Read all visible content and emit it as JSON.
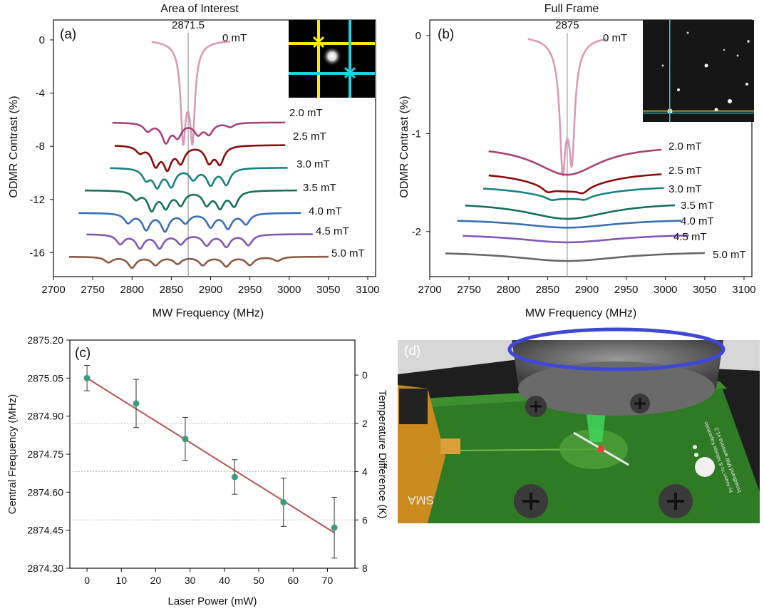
{
  "chart_data": [
    {
      "id": "a",
      "type": "line",
      "panel_label": "(a)",
      "title": "Area of Interest",
      "xlabel": "MW Frequency (MHz)",
      "ylabel": "ODMR Contrast (%)",
      "xlim": [
        2700,
        3110
      ],
      "ylim": [
        -17.8,
        1.5
      ],
      "xticks": [
        2700,
        2750,
        2800,
        2850,
        2900,
        2950,
        3000,
        3050,
        3100
      ],
      "yticks": [
        0,
        -4,
        -8,
        -12,
        -16
      ],
      "center_line": {
        "x": 2871.5,
        "label": "2871.5"
      },
      "inset": "camera-region-of-interest",
      "series": [
        {
          "name": "0 mT",
          "color": "#d89ab8",
          "baseline": 0,
          "xmin": 2825,
          "xmax": 2925,
          "lines": [
            {
              "c": 2865,
              "d": 5.7,
              "w": 3.5
            },
            {
              "c": 2877,
              "d": 5.7,
              "w": 3.5
            },
            {
              "c": 2871,
              "d": 2.5,
              "w": 9
            }
          ]
        },
        {
          "name": "2.0 mT",
          "color": "#a64377",
          "baseline": -6.2,
          "xmin": 2775,
          "xmax": 2995,
          "lines": [
            {
              "c": 2843,
              "d": 1.4,
              "w": 6
            },
            {
              "c": 2858,
              "d": 1.0,
              "w": 6
            },
            {
              "c": 2884,
              "d": 0.8,
              "w": 6
            },
            {
              "c": 2898,
              "d": 0.8,
              "w": 6
            },
            {
              "c": 2820,
              "d": 0.6,
              "w": 6
            },
            {
              "c": 2925,
              "d": 0.3,
              "w": 6
            }
          ]
        },
        {
          "name": "2.5 mT",
          "color": "#8b0b0b",
          "baseline": -7.9,
          "xmin": 2778,
          "xmax": 2995,
          "lines": [
            {
              "c": 2830,
              "d": 1.4,
              "w": 6
            },
            {
              "c": 2845,
              "d": 1.6,
              "w": 6
            },
            {
              "c": 2862,
              "d": 1.2,
              "w": 6
            },
            {
              "c": 2898,
              "d": 1.2,
              "w": 6
            },
            {
              "c": 2912,
              "d": 1.3,
              "w": 6
            },
            {
              "c": 2810,
              "d": 0.5,
              "w": 6
            }
          ]
        },
        {
          "name": "3.0 mT",
          "color": "#1a8080",
          "baseline": -9.6,
          "xmin": 2772,
          "xmax": 2998,
          "lines": [
            {
              "c": 2818,
              "d": 0.8,
              "w": 6
            },
            {
              "c": 2832,
              "d": 1.3,
              "w": 6
            },
            {
              "c": 2850,
              "d": 1.3,
              "w": 6
            },
            {
              "c": 2878,
              "d": 0.8,
              "w": 6
            },
            {
              "c": 2900,
              "d": 1.2,
              "w": 6
            },
            {
              "c": 2920,
              "d": 1.2,
              "w": 6
            }
          ]
        },
        {
          "name": "3.5 mT",
          "color": "#16705a",
          "baseline": -11.3,
          "xmin": 2740,
          "xmax": 3010,
          "lines": [
            {
              "c": 2805,
              "d": 0.6,
              "w": 6
            },
            {
              "c": 2825,
              "d": 1.4,
              "w": 6
            },
            {
              "c": 2843,
              "d": 1.2,
              "w": 6
            },
            {
              "c": 2862,
              "d": 1.0,
              "w": 6
            },
            {
              "c": 2895,
              "d": 1.0,
              "w": 6
            },
            {
              "c": 2912,
              "d": 1.2,
              "w": 6
            },
            {
              "c": 2930,
              "d": 1.1,
              "w": 6
            }
          ]
        },
        {
          "name": "4.0 mT",
          "color": "#3a6fb8",
          "baseline": -13.0,
          "xmin": 2732,
          "xmax": 3015,
          "lines": [
            {
              "c": 2795,
              "d": 0.7,
              "w": 6
            },
            {
              "c": 2818,
              "d": 1.2,
              "w": 6
            },
            {
              "c": 2842,
              "d": 1.3,
              "w": 6
            },
            {
              "c": 2868,
              "d": 0.7,
              "w": 6
            },
            {
              "c": 2900,
              "d": 1.0,
              "w": 6
            },
            {
              "c": 2922,
              "d": 1.1,
              "w": 6
            },
            {
              "c": 2945,
              "d": 0.8,
              "w": 6
            }
          ]
        },
        {
          "name": "4.5 mT",
          "color": "#8058b8",
          "baseline": -14.6,
          "xmin": 2742,
          "xmax": 3030,
          "lines": [
            {
              "c": 2785,
              "d": 0.7,
              "w": 6
            },
            {
              "c": 2810,
              "d": 1.0,
              "w": 6
            },
            {
              "c": 2835,
              "d": 1.0,
              "w": 6
            },
            {
              "c": 2862,
              "d": 0.7,
              "w": 6
            },
            {
              "c": 2895,
              "d": 0.8,
              "w": 6
            },
            {
              "c": 2920,
              "d": 0.9,
              "w": 6
            },
            {
              "c": 2948,
              "d": 0.8,
              "w": 6
            }
          ]
        },
        {
          "name": "5.0 mT",
          "color": "#8b5a43",
          "baseline": -16.3,
          "xmin": 2720,
          "xmax": 3050,
          "lines": [
            {
              "c": 2770,
              "d": 0.4,
              "w": 6
            },
            {
              "c": 2800,
              "d": 0.8,
              "w": 6
            },
            {
              "c": 2830,
              "d": 0.6,
              "w": 6
            },
            {
              "c": 2858,
              "d": 0.5,
              "w": 6
            },
            {
              "c": 2890,
              "d": 0.6,
              "w": 6
            },
            {
              "c": 2920,
              "d": 0.7,
              "w": 6
            },
            {
              "c": 2950,
              "d": 0.6,
              "w": 6
            },
            {
              "c": 2985,
              "d": 0.3,
              "w": 6
            }
          ]
        }
      ]
    },
    {
      "id": "b",
      "type": "line",
      "panel_label": "(b)",
      "title": "Full Frame",
      "xlabel": "MW Frequency (MHz)",
      "ylabel": "ODMR Contrast (%)",
      "xlim": [
        2700,
        3110
      ],
      "ylim": [
        -2.46,
        0.16
      ],
      "xticks": [
        2700,
        2750,
        2800,
        2850,
        2900,
        2950,
        3000,
        3050,
        3100
      ],
      "yticks": [
        0,
        -1,
        -2
      ],
      "center_line": {
        "x": 2875,
        "label": "2875"
      },
      "inset": "camera-full-frame",
      "series": [
        {
          "name": "0 mT",
          "color": "#d89ab8",
          "baseline": 0,
          "xmin": 2825,
          "xmax": 2925,
          "lines": [
            {
              "c": 2869,
              "d": 0.95,
              "w": 4
            },
            {
              "c": 2881,
              "d": 0.85,
              "w": 4
            },
            {
              "c": 2875,
              "d": 0.5,
              "w": 11
            }
          ]
        },
        {
          "name": "2.0 mT",
          "color": "#a64377",
          "baseline": -1.12,
          "xmin": 2775,
          "xmax": 2995,
          "lines": [
            {
              "c": 2875,
              "d": 0.3,
              "w": 50
            }
          ]
        },
        {
          "name": "2.5 mT",
          "color": "#8b0b0b",
          "baseline": -1.38,
          "xmin": 2775,
          "xmax": 2995,
          "lines": [
            {
              "c": 2875,
              "d": 0.2,
              "w": 55
            },
            {
              "c": 2850,
              "d": 0.05,
              "w": 8
            },
            {
              "c": 2895,
              "d": 0.05,
              "w": 8
            }
          ]
        },
        {
          "name": "3.0 mT",
          "color": "#1a8080",
          "baseline": -1.53,
          "xmin": 2768,
          "xmax": 2998,
          "lines": [
            {
              "c": 2875,
              "d": 0.13,
              "w": 60
            },
            {
              "c": 2855,
              "d": 0.03,
              "w": 8
            },
            {
              "c": 2897,
              "d": 0.03,
              "w": 8
            }
          ]
        },
        {
          "name": "3.5 mT",
          "color": "#16705a",
          "baseline": -1.7,
          "xmin": 2745,
          "xmax": 3012,
          "lines": [
            {
              "c": 2875,
              "d": 0.17,
              "w": 65
            }
          ]
        },
        {
          "name": "4.0 mT",
          "color": "#3a6fb8",
          "baseline": -1.87,
          "xmin": 2735,
          "xmax": 3020,
          "lines": [
            {
              "c": 2875,
              "d": 0.09,
              "w": 75
            }
          ]
        },
        {
          "name": "4.5 mT",
          "color": "#8058b8",
          "baseline": -2.02,
          "xmin": 2742,
          "xmax": 3030,
          "lines": [
            {
              "c": 2875,
              "d": 0.09,
              "w": 80
            }
          ]
        },
        {
          "name": "5.0 mT",
          "color": "#666666",
          "baseline": -2.2,
          "xmin": 2720,
          "xmax": 3050,
          "lines": [
            {
              "c": 2875,
              "d": 0.1,
              "w": 85
            }
          ]
        }
      ]
    },
    {
      "id": "c",
      "type": "scatter",
      "panel_label": "(c)",
      "xlabel": "Laser Power (mW)",
      "ylabel": "Central Frequency (MHz)",
      "y2label": "Temperature Difference (K)",
      "xlim": [
        -5,
        78
      ],
      "ylim": [
        2874.3,
        2875.2
      ],
      "y2lim": [
        8,
        -1.45
      ],
      "xticks": [
        0,
        10,
        20,
        30,
        40,
        50,
        60,
        70
      ],
      "yticks": [
        "2874.30",
        "2874.45",
        "2874.60",
        "2874.75",
        "2874.90",
        "2875.05",
        "2875.20"
      ],
      "y2ticks": [
        0,
        2,
        4,
        6,
        8
      ],
      "x": [
        0,
        14.3,
        28.6,
        43,
        57.2,
        72
      ],
      "y": [
        2875.05,
        2874.95,
        2874.81,
        2874.66,
        2874.56,
        2874.46
      ],
      "yerr": [
        0.05,
        0.095,
        0.085,
        0.068,
        0.095,
        0.12
      ],
      "fit": {
        "x": [
          0,
          72
        ],
        "y": [
          2875.05,
          2874.44
        ],
        "color": "#b5564f"
      },
      "marker_color": "#3d9a7c"
    }
  ],
  "panel_d": {
    "label": "(d)",
    "board_text": [
      "broadband MW antenna v1.2",
      "by Aiwen Yu & Nikolas Kapsokalis",
      "SMA"
    ],
    "board_color": "#2f7a24"
  }
}
